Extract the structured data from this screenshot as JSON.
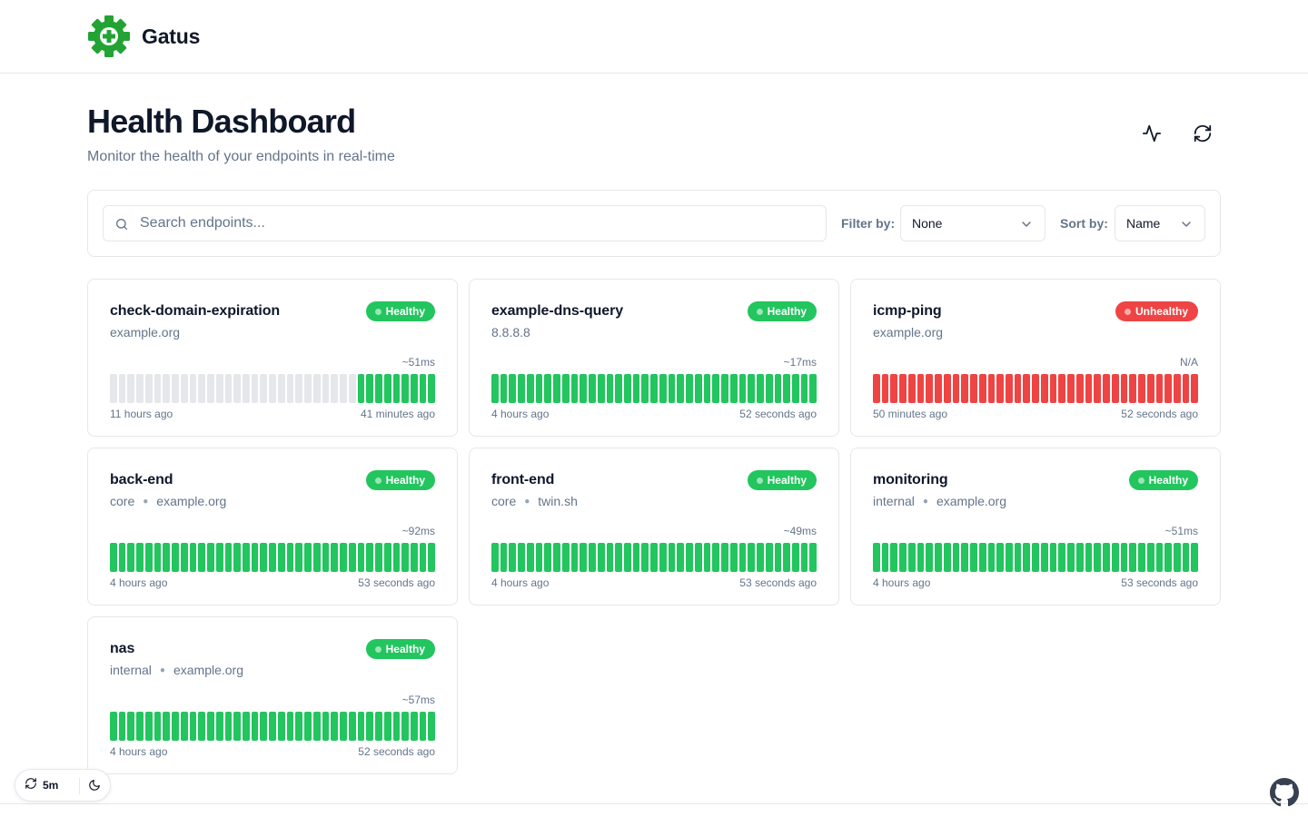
{
  "app": {
    "name": "Gatus",
    "logo_icon": "gatus-gear-logo",
    "brand_color": "#22a334"
  },
  "header": {
    "title": "Health Dashboard",
    "subtitle": "Monitor the health of your endpoints in real-time",
    "actions": [
      {
        "name": "activity-icon"
      },
      {
        "name": "refresh-icon"
      }
    ]
  },
  "filters": {
    "search_placeholder": "Search endpoints...",
    "search_value": "",
    "filter_label": "Filter by:",
    "filter_value": "None",
    "sort_label": "Sort by:",
    "sort_value": "Name"
  },
  "colors": {
    "healthy": "#22c55e",
    "unhealthy": "#ef4444",
    "empty": "#e5e7eb"
  },
  "endpoints": [
    {
      "name": "check-domain-expiration",
      "group": "",
      "host": "example.org",
      "status": "Healthy",
      "response": "~51ms",
      "start": "11 hours ago",
      "end": "41 minutes ago",
      "results": {
        "empty": 28,
        "success": 9,
        "failure": 0
      }
    },
    {
      "name": "example-dns-query",
      "group": "",
      "host": "8.8.8.8",
      "status": "Healthy",
      "response": "~17ms",
      "start": "4 hours ago",
      "end": "52 seconds ago",
      "results": {
        "empty": 0,
        "success": 37,
        "failure": 0
      }
    },
    {
      "name": "icmp-ping",
      "group": "",
      "host": "example.org",
      "status": "Unhealthy",
      "response": "N/A",
      "start": "50 minutes ago",
      "end": "52 seconds ago",
      "results": {
        "empty": 0,
        "success": 0,
        "failure": 37
      }
    },
    {
      "name": "back-end",
      "group": "core",
      "host": "example.org",
      "status": "Healthy",
      "response": "~92ms",
      "start": "4 hours ago",
      "end": "53 seconds ago",
      "results": {
        "empty": 0,
        "success": 37,
        "failure": 0
      }
    },
    {
      "name": "front-end",
      "group": "core",
      "host": "twin.sh",
      "status": "Healthy",
      "response": "~49ms",
      "start": "4 hours ago",
      "end": "53 seconds ago",
      "results": {
        "empty": 0,
        "success": 37,
        "failure": 0
      }
    },
    {
      "name": "monitoring",
      "group": "internal",
      "host": "example.org",
      "status": "Healthy",
      "response": "~51ms",
      "start": "4 hours ago",
      "end": "53 seconds ago",
      "results": {
        "empty": 0,
        "success": 37,
        "failure": 0
      }
    },
    {
      "name": "nas",
      "group": "internal",
      "host": "example.org",
      "status": "Healthy",
      "response": "~57ms",
      "start": "4 hours ago",
      "end": "52 seconds ago",
      "results": {
        "empty": 0,
        "success": 37,
        "failure": 0
      }
    }
  ],
  "controls": {
    "refresh_interval": "5m",
    "theme_icon": "moon-icon",
    "github_icon": "github-icon"
  }
}
